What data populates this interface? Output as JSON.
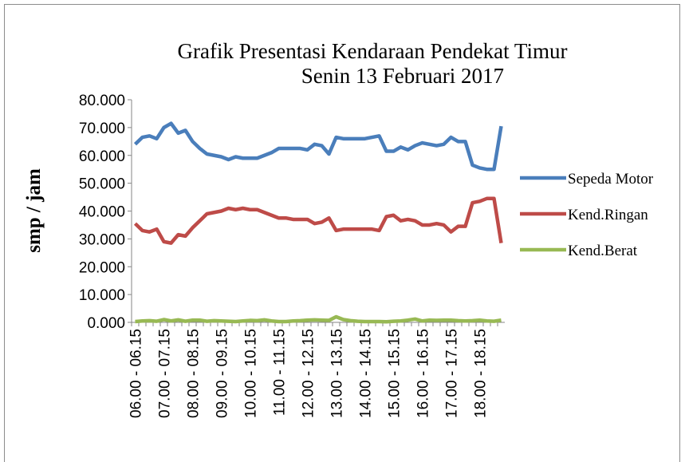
{
  "chart_data": {
    "type": "line",
    "title": "Grafik Presentasi Kendaraan Pendekat Timur",
    "subtitle": "Senin 13 Februari 2017",
    "y_label": "smp / jam",
    "categories": [
      "06.00 - 06.15",
      null,
      null,
      null,
      "07.00 - 07.15",
      null,
      null,
      null,
      "08.00 - 08.15",
      null,
      null,
      null,
      "09.00 - 09.15",
      null,
      null,
      null,
      "10.00 - 10.15",
      null,
      null,
      null,
      "11.00 - 11.15",
      null,
      null,
      null,
      "12.00 - 12.15",
      null,
      null,
      null,
      "13.00 - 13.15",
      null,
      null,
      null,
      "14.00 - 14.15",
      null,
      null,
      null,
      "15.00 - 15.15",
      null,
      null,
      null,
      "16.00 - 16.15",
      null,
      null,
      null,
      "17.00 - 17.15",
      null,
      null,
      null,
      "18.00 - 18.15",
      null,
      null,
      null
    ],
    "series": [
      {
        "name": "Sepeda Motor",
        "color": "#4a7ebb",
        "values": [
          64,
          66.5,
          67,
          66,
          70,
          71.5,
          68,
          69,
          65,
          62.5,
          60.5,
          60,
          59.5,
          58.5,
          59.5,
          59,
          59,
          59,
          60,
          61,
          62.5,
          62.5,
          62.5,
          62.5,
          62,
          64,
          63.5,
          60.5,
          66.5,
          66,
          66,
          66,
          66,
          66.5,
          67,
          61.5,
          61.5,
          63,
          62,
          63.5,
          64.5,
          64,
          63.5,
          64,
          66.5,
          65,
          65,
          56.5,
          55.5,
          55,
          55,
          70.5
        ]
      },
      {
        "name": "Kend.Ringan",
        "color": "#be4b48",
        "values": [
          35.5,
          33,
          32.5,
          33.5,
          29,
          28.5,
          31.5,
          31,
          34,
          36.5,
          39,
          39.5,
          40,
          41,
          40.5,
          41,
          40.5,
          40.5,
          39.5,
          38.5,
          37.5,
          37.5,
          37,
          37,
          37,
          35.5,
          36,
          37.5,
          33,
          33.5,
          33.5,
          33.5,
          33.5,
          33.5,
          33,
          38,
          38.5,
          36.5,
          37,
          36.5,
          35,
          35,
          35.5,
          35,
          32.5,
          34.5,
          34.5,
          43,
          43.5,
          44.5,
          44.5,
          28.5
        ]
      },
      {
        "name": "Kend.Berat",
        "color": "#98b954",
        "values": [
          0.3,
          0.5,
          0.6,
          0.4,
          1,
          0.5,
          0.9,
          0.4,
          0.8,
          0.8,
          0.4,
          0.6,
          0.5,
          0.4,
          0.3,
          0.5,
          0.7,
          0.6,
          0.9,
          0.5,
          0.3,
          0.3,
          0.5,
          0.6,
          0.8,
          0.9,
          0.8,
          0.7,
          2,
          1,
          0.6,
          0.4,
          0.3,
          0.3,
          0.3,
          0.2,
          0.4,
          0.5,
          0.8,
          1.2,
          0.5,
          0.8,
          0.7,
          0.8,
          0.8,
          0.6,
          0.5,
          0.6,
          0.8,
          0.5,
          0.4,
          0.8
        ]
      }
    ],
    "ylim": [
      0,
      80
    ],
    "yticks": [
      {
        "value": 0,
        "label": "0.000"
      },
      {
        "value": 10,
        "label": "10.000"
      },
      {
        "value": 20,
        "label": "20.000"
      },
      {
        "value": 30,
        "label": "30.000"
      },
      {
        "value": 40,
        "label": "40.000"
      },
      {
        "value": 50,
        "label": "50.000"
      },
      {
        "value": 60,
        "label": "60.000"
      },
      {
        "value": 70,
        "label": "70.000"
      },
      {
        "value": 80,
        "label": "80.000"
      }
    ],
    "legend": "right"
  }
}
